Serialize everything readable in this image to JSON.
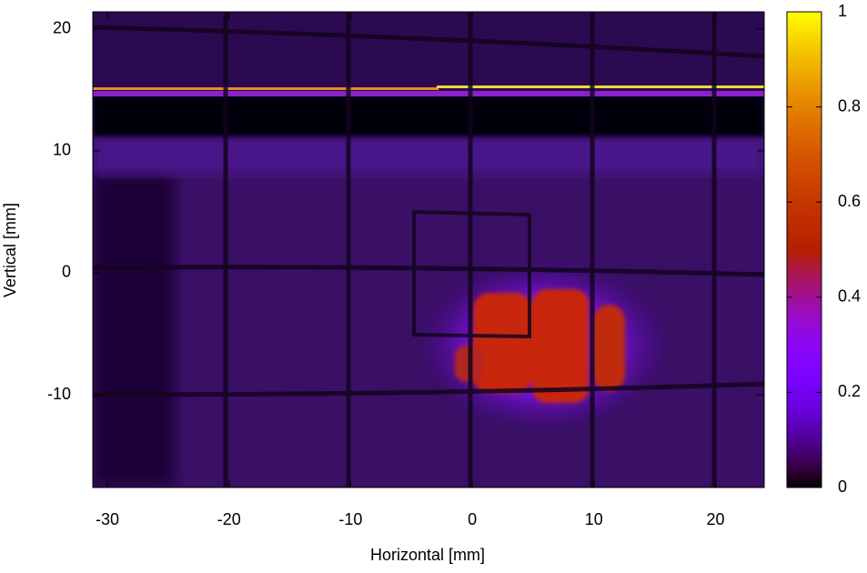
{
  "chart_data": {
    "type": "heatmap",
    "xlabel": "Horizontal [mm]",
    "ylabel": "Vertical [mm]",
    "xlim": [
      -31.2,
      24
    ],
    "ylim": [
      -17.6,
      21.4
    ],
    "xticks": [
      -30,
      -20,
      -10,
      0,
      10,
      20
    ],
    "yticks": [
      -10,
      0,
      10,
      20
    ],
    "cblim": [
      0,
      1
    ],
    "cbticks": [
      0,
      0.2,
      0.4,
      0.6,
      0.8,
      1
    ]
  }
}
